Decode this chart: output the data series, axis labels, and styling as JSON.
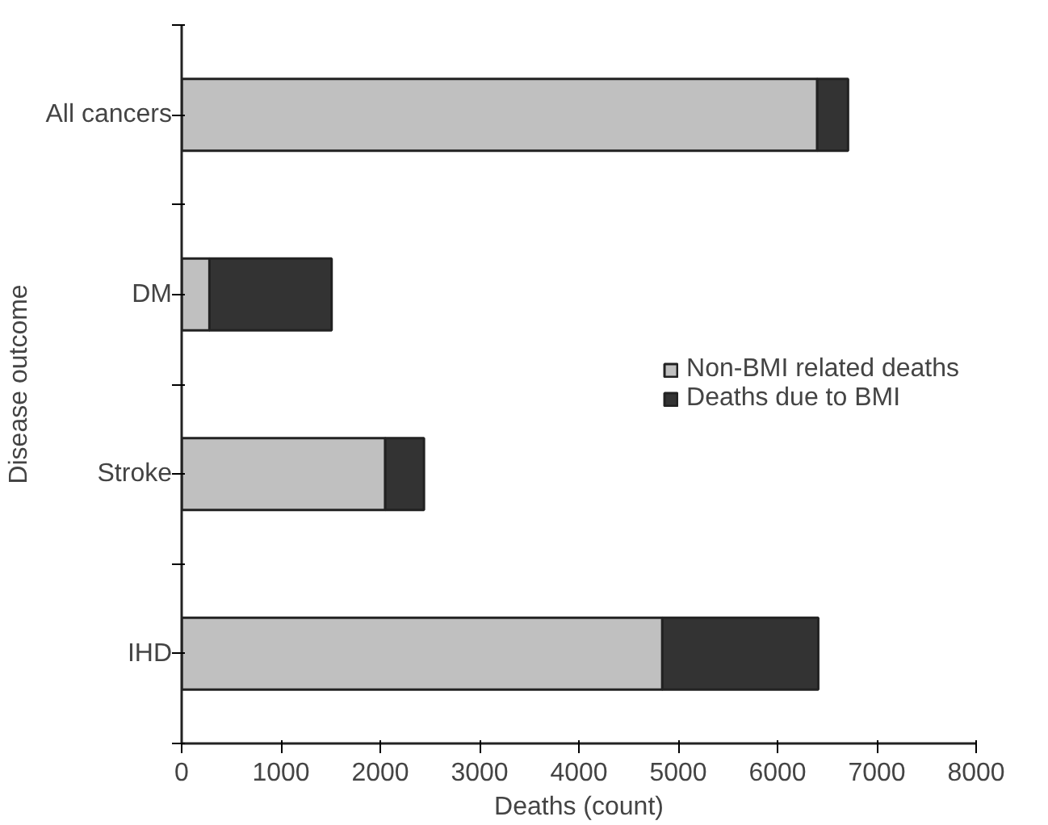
{
  "chart_data": {
    "type": "bar",
    "orientation": "horizontal",
    "stacked": true,
    "xlabel": "Deaths (count)",
    "ylabel": "Disease outcome",
    "categories": [
      "All cancers",
      "DM",
      "Stroke",
      "IHD"
    ],
    "series": [
      {
        "name": "Non-BMI related deaths",
        "color": "#c0c0c0",
        "values": [
          6400,
          280,
          2050,
          4840
        ]
      },
      {
        "name": "Deaths due to BMI",
        "color": "#333333",
        "values": [
          310,
          1230,
          390,
          1570
        ]
      }
    ],
    "xlim": [
      0,
      8000
    ],
    "xticks": [
      0,
      1000,
      2000,
      3000,
      4000,
      5000,
      6000,
      7000,
      8000
    ],
    "grid": false,
    "legend": "right"
  }
}
